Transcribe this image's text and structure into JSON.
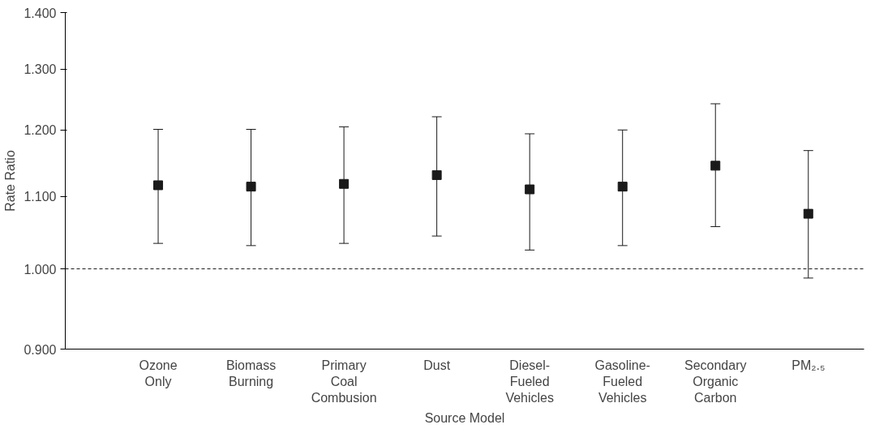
{
  "chart_data": {
    "type": "scatter",
    "xlabel": "Source Model",
    "ylabel": "Rate Ratio",
    "categories": [
      "Ozone\nOnly",
      "Biomass\nBurning",
      "Primary\nCoal\nCombusion",
      "Dust",
      "Diesel-\nFueled\nVehicles",
      "Gasoline-\nFueled\nVehicles",
      "Secondary\nOrganic\nCarbon",
      "PM₂.₅"
    ],
    "series": [
      {
        "color": "#1a1a1a",
        "values": [
          1.116,
          1.114,
          1.118,
          1.131,
          1.11,
          1.114,
          1.145,
          1.075
        ],
        "errors": [
          [
            1.034,
            1.201
          ],
          [
            1.031,
            1.201
          ],
          [
            1.034,
            1.205
          ],
          [
            1.044,
            1.221
          ],
          [
            1.025,
            1.194
          ],
          [
            1.031,
            1.2
          ],
          [
            1.057,
            1.242
          ],
          [
            0.988,
            1.168
          ]
        ]
      }
    ],
    "ylim": [
      0.9,
      1.4
    ],
    "yticks": [
      {
        "value": 0.9,
        "label": "0.900"
      },
      {
        "value": 1.0,
        "label": "1.000"
      },
      {
        "value": 1.1,
        "label": "1.100"
      },
      {
        "value": 1.2,
        "label": "1.200"
      },
      {
        "value": 1.3,
        "label": "1.300"
      },
      {
        "value": 1.4,
        "label": "1.400"
      }
    ],
    "log": "y",
    "grid": false,
    "marker": "square",
    "ref_lines": [
      {
        "axis": "y",
        "value": 1.0,
        "color": "#1a1a1a",
        "line_style": "dashed"
      }
    ]
  }
}
